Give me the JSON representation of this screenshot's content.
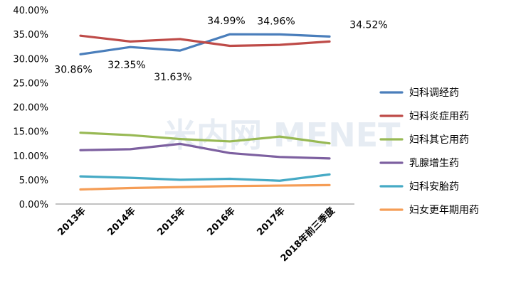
{
  "chart_data": {
    "type": "line",
    "categories": [
      "2013年",
      "2014年",
      "2015年",
      "2016年",
      "2017年",
      "2018年前三季度"
    ],
    "ylim": [
      0,
      40
    ],
    "yticks": [
      "0.00%",
      "5.00%",
      "10.00%",
      "15.00%",
      "20.00%",
      "25.00%",
      "30.00%",
      "35.00%",
      "40.00%"
    ],
    "grid": false,
    "legend": "right",
    "series": [
      {
        "name": "妇科调经药",
        "color": "#4a7ebb",
        "values": [
          30.86,
          32.35,
          31.63,
          34.99,
          34.96,
          34.52
        ]
      },
      {
        "name": "妇科炎症用药",
        "color": "#be4b48",
        "values": [
          34.7,
          33.5,
          34.0,
          32.6,
          32.8,
          33.5
        ]
      },
      {
        "name": "妇科其它用药",
        "color": "#98b954",
        "values": [
          14.7,
          14.2,
          13.4,
          12.9,
          13.9,
          12.5
        ]
      },
      {
        "name": "乳腺增生药",
        "color": "#7d60a0",
        "values": [
          11.1,
          11.3,
          12.4,
          10.5,
          9.7,
          9.4
        ]
      },
      {
        "name": "妇科安胎药",
        "color": "#46aac5",
        "values": [
          5.7,
          5.4,
          5.0,
          5.2,
          4.8,
          6.1
        ]
      },
      {
        "name": "妇女更年期用药",
        "color": "#f59d56",
        "values": [
          3.0,
          3.3,
          3.5,
          3.7,
          3.8,
          3.9
        ]
      }
    ],
    "data_labels": [
      {
        "series": 0,
        "index": 0,
        "text": "30.86%"
      },
      {
        "series": 0,
        "index": 1,
        "text": "32.35%"
      },
      {
        "series": 0,
        "index": 2,
        "text": "31.63%"
      },
      {
        "series": 0,
        "index": 3,
        "text": "34.99%"
      },
      {
        "series": 0,
        "index": 4,
        "text": "34.96%"
      },
      {
        "series": 0,
        "index": 5,
        "text": "34.52%"
      }
    ],
    "watermark": "米内网 MENET"
  }
}
